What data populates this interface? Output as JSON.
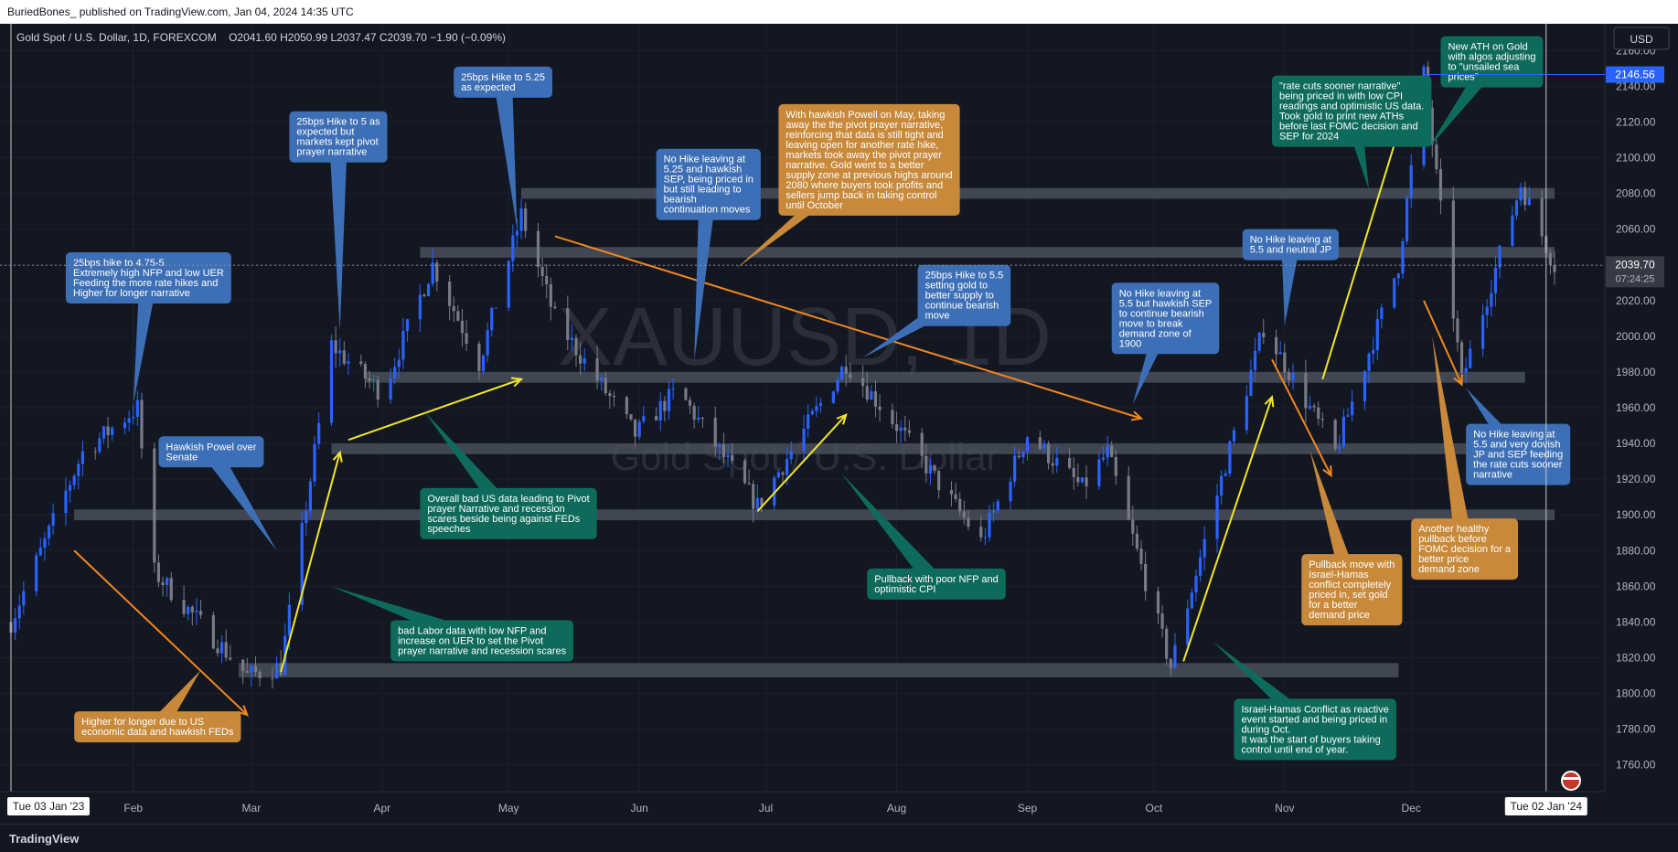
{
  "header": {
    "publisher_line": "BuriedBones_ published on TradingView.com, Jan 04, 2024 14:35 UTC",
    "symbol_line": "Gold Spot / U.S. Dollar, 1D, FOREXCOM",
    "ohlc": "O2041.60  H2050.99  L2037.47  C2039.70  −1.90 (−0.09%)",
    "currency_button": "USD"
  },
  "watermark": {
    "symbol": "XAUUSD, 1D",
    "name": "Gold Spot / U.S. Dollar"
  },
  "footer": {
    "brand": "TradingView",
    "logo_icon": "tradingview-logo-icon"
  },
  "colors": {
    "background": "#131722",
    "up": "#2962ff",
    "down": "#787b86",
    "note_blue": "#3d6fb6",
    "note_green": "#0e6b5c",
    "note_orange": "#c8893a",
    "zone": "#4a4f5c",
    "arrow_yellow": "#f2e529",
    "arrow_orange": "#f2871f",
    "last_price_bg": "#363a45",
    "ath_price_bg": "#2962ff"
  },
  "chart_data": {
    "type": "candlestick",
    "x_range": [
      "2023-01-03",
      "2024-01-04"
    ],
    "ylim": [
      1745,
      2175
    ],
    "y_ticks": [
      1760,
      1780,
      1800,
      1820,
      1840,
      1860,
      1880,
      1900,
      1920,
      1940,
      1960,
      1980,
      2000,
      2020,
      2040,
      2060,
      2080,
      2100,
      2120,
      2140,
      2160
    ],
    "month_ticks": [
      {
        "label": "Feb",
        "date": "2023-02-01"
      },
      {
        "label": "Mar",
        "date": "2023-03-01"
      },
      {
        "label": "Apr",
        "date": "2023-04-01"
      },
      {
        "label": "May",
        "date": "2023-05-01"
      },
      {
        "label": "Jun",
        "date": "2023-06-01"
      },
      {
        "label": "Jul",
        "date": "2023-07-01"
      },
      {
        "label": "Aug",
        "date": "2023-08-01"
      },
      {
        "label": "Sep",
        "date": "2023-09-01"
      },
      {
        "label": "Oct",
        "date": "2023-10-01"
      },
      {
        "label": "Nov",
        "date": "2023-11-01"
      },
      {
        "label": "Dec",
        "date": "2023-12-01"
      }
    ],
    "cursor_start": {
      "label": "Tue 03 Jan '23",
      "date": "2023-01-03"
    },
    "cursor_end": {
      "label": "Tue 02 Jan '24",
      "date": "2024-01-02"
    },
    "last_price": {
      "value": 2039.7,
      "label": "2039.70",
      "countdown": "07:24:25"
    },
    "ath_price": {
      "value": 2146.56,
      "label": "2146.56"
    },
    "price_path": [
      [
        "2023-01-03",
        1840
      ],
      [
        "2023-01-20",
        1935
      ],
      [
        "2023-02-02",
        1960
      ],
      [
        "2023-02-06",
        1868
      ],
      [
        "2023-02-28",
        1810
      ],
      [
        "2023-03-08",
        1815
      ],
      [
        "2023-03-20",
        1995
      ],
      [
        "2023-04-01",
        1968
      ],
      [
        "2023-04-13",
        2040
      ],
      [
        "2023-04-24",
        1985
      ],
      [
        "2023-05-04",
        2068
      ],
      [
        "2023-05-12",
        2010
      ],
      [
        "2023-05-31",
        1945
      ],
      [
        "2023-06-10",
        1970
      ],
      [
        "2023-06-29",
        1905
      ],
      [
        "2023-07-20",
        1985
      ],
      [
        "2023-08-01",
        1950
      ],
      [
        "2023-08-21",
        1885
      ],
      [
        "2023-09-01",
        1945
      ],
      [
        "2023-09-14",
        1915
      ],
      [
        "2023-09-20",
        1935
      ],
      [
        "2023-10-05",
        1815
      ],
      [
        "2023-10-17",
        1920
      ],
      [
        "2023-10-27",
        2005
      ],
      [
        "2023-11-13",
        1935
      ],
      [
        "2023-11-28",
        2040
      ],
      [
        "2023-12-04",
        2146.56
      ],
      [
        "2023-12-13",
        1975
      ],
      [
        "2023-12-27",
        2085
      ],
      [
        "2024-01-04",
        2039.7
      ]
    ],
    "zones": [
      {
        "from": "2023-05-04",
        "to": "2024-01-04",
        "low": 2077,
        "high": 2083
      },
      {
        "from": "2023-04-10",
        "to": "2024-01-04",
        "low": 2044,
        "high": 2050
      },
      {
        "from": "2023-03-28",
        "to": "2023-12-28",
        "low": 1974,
        "high": 1980
      },
      {
        "from": "2023-03-20",
        "to": "2024-01-04",
        "low": 1934,
        "high": 1940
      },
      {
        "from": "2023-01-18",
        "to": "2024-01-04",
        "low": 1897,
        "high": 1903
      },
      {
        "from": "2023-02-26",
        "to": "2023-11-28",
        "low": 1809,
        "high": 1817
      }
    ],
    "annotations": [
      {
        "id": "n1",
        "style": "blue",
        "lines": [
          "25bps hike to 4.75-5",
          "Extremely high NFP and low UER",
          "Feeding the more rate hikes and",
          "Higher for longer narrative"
        ],
        "box": {
          "date": "2023-01-16",
          "price": 2047
        },
        "pointer": {
          "date": "2023-02-01",
          "price": 1962
        }
      },
      {
        "id": "n2",
        "style": "blue",
        "lines": [
          "Hawkish Powel over",
          "Senate"
        ],
        "box": {
          "date": "2023-02-07",
          "price": 1944
        },
        "pointer": {
          "date": "2023-03-07",
          "price": 1880
        }
      },
      {
        "id": "n3",
        "style": "blue",
        "lines": [
          "25bps Hike to 5 as",
          "expected but",
          "markets kept pivot",
          "prayer narrative"
        ],
        "box": {
          "date": "2023-03-10",
          "price": 2126
        },
        "pointer": {
          "date": "2023-03-22",
          "price": 2003
        }
      },
      {
        "id": "n4",
        "style": "blue",
        "lines": [
          "25bps Hike to 5.25",
          "as expected"
        ],
        "box": {
          "date": "2023-04-18",
          "price": 2151
        },
        "pointer": {
          "date": "2023-05-03",
          "price": 2060
        }
      },
      {
        "id": "n5",
        "style": "blue",
        "lines": [
          "No Hike leaving at",
          "5.25 and hawkish",
          "SEP, being priced in",
          "but still leading to",
          "bearish",
          "continuation moves"
        ],
        "box": {
          "date": "2023-06-05",
          "price": 2105
        },
        "pointer": {
          "date": "2023-06-14",
          "price": 1986
        }
      },
      {
        "id": "n6",
        "style": "orange",
        "lines": [
          "With hawkish Powell on May, taking",
          "away the the pivot prayer narrative,",
          "reinforcing that data is still tight and",
          "leaving open for another rate hike,",
          "markets took away the pivot prayer",
          "narrative. Gold went to a better",
          "supply zone at previous highs around",
          "2080 where buyers took profits and",
          "sellers jump back in taking control",
          "until October"
        ],
        "box": {
          "date": "2023-07-04",
          "price": 2130
        },
        "pointer": {
          "date": "2023-06-24",
          "price": 2038
        }
      },
      {
        "id": "n7",
        "style": "blue",
        "lines": [
          "25bps Hike to 5.5",
          "setting gold to",
          "better supply to",
          "continue bearish",
          "move"
        ],
        "box": {
          "date": "2023-08-06",
          "price": 2040
        },
        "pointer": {
          "date": "2023-07-24",
          "price": 1988
        }
      },
      {
        "id": "n8",
        "style": "blue",
        "lines": [
          "No Hike leaving at",
          "5.5 but hawkish SEP",
          "to continue bearish",
          "move to break",
          "demand zone of",
          "1900"
        ],
        "box": {
          "date": "2023-09-21",
          "price": 2030
        },
        "pointer": {
          "date": "2023-09-26",
          "price": 1962
        }
      },
      {
        "id": "n9",
        "style": "blue",
        "lines": [
          "No Hike leaving at",
          "5.5 and neutral JP"
        ],
        "box": {
          "date": "2023-10-22",
          "price": 2060
        },
        "pointer": {
          "date": "2023-11-01",
          "price": 2006
        }
      },
      {
        "id": "n10",
        "style": "green",
        "lines": [
          "\"rate cuts sooner narrative\"",
          "being priced in with low CPI",
          "readings and optimistic US data.",
          "Took gold to print new ATHs",
          "before last FOMC decision and",
          "SEP for 2024"
        ],
        "box": {
          "date": "2023-10-29",
          "price": 2146
        },
        "pointer": {
          "date": "2023-11-21",
          "price": 2082
        }
      },
      {
        "id": "n11",
        "style": "green",
        "lines": [
          "New ATH on Gold",
          "with algos adjusting",
          "to \"unsailed sea",
          "prices\""
        ],
        "box": {
          "date": "2023-12-08",
          "price": 2168
        },
        "pointer": {
          "date": "2023-12-05",
          "price": 2105
        }
      },
      {
        "id": "n12",
        "style": "green",
        "lines": [
          "Overall bad US data leading to Pivot",
          "prayer Narrative and recession",
          "scares beside being against FEDs",
          "speeches"
        ],
        "box": {
          "date": "2023-04-10",
          "price": 1915
        },
        "pointer": {
          "date": "2023-04-11",
          "price": 1958
        }
      },
      {
        "id": "n13",
        "style": "green",
        "lines": [
          "bad Labor data with low NFP and",
          "increase on UER to set the Pivot",
          "prayer narrative and recession scares"
        ],
        "box": {
          "date": "2023-04-03",
          "price": 1841
        },
        "pointer": {
          "date": "2023-03-20",
          "price": 1860
        }
      },
      {
        "id": "n14",
        "style": "green",
        "lines": [
          "Pullback with poor NFP and",
          "optimistic CPI"
        ],
        "box": {
          "date": "2023-07-25",
          "price": 1870
        },
        "pointer": {
          "date": "2023-07-19",
          "price": 1923
        }
      },
      {
        "id": "n15",
        "style": "green",
        "lines": [
          "Israel-Hamas Conflict as reactive",
          "event started and being priced in",
          "during Oct.",
          "It was the start of buyers taking",
          "control until end of year."
        ],
        "box": {
          "date": "2023-10-20",
          "price": 1797
        },
        "pointer": {
          "date": "2023-10-15",
          "price": 1829
        }
      },
      {
        "id": "n16",
        "style": "orange",
        "lines": [
          "Pullback move with",
          "Israel-Hamas",
          "conflict completely",
          "priced in, set gold",
          "for a better",
          "demand price"
        ],
        "box": {
          "date": "2023-11-05",
          "price": 1878
        },
        "pointer": {
          "date": "2023-11-07",
          "price": 1936
        }
      },
      {
        "id": "n17",
        "style": "orange",
        "lines": [
          "Another healthy",
          "pullback before",
          "FOMC decision for a",
          "better price",
          "demand zone"
        ],
        "box": {
          "date": "2023-12-01",
          "price": 1898
        },
        "pointer": {
          "date": "2023-12-06",
          "price": 2000
        }
      },
      {
        "id": "n18",
        "style": "blue",
        "lines": [
          "No Hike leaving at",
          "5.5 and very dovish",
          "JP and SEP feeding",
          "the rate cuts sooner",
          "narrative"
        ],
        "box": {
          "date": "2023-12-14",
          "price": 1951
        },
        "pointer": {
          "date": "2023-12-14",
          "price": 1971
        }
      },
      {
        "id": "n19",
        "style": "orange",
        "lines": [
          "Higher for longer due to US",
          "economic data and hawkish FEDs"
        ],
        "box": {
          "date": "2023-01-18",
          "price": 1790
        },
        "pointer": {
          "date": "2023-02-17",
          "price": 1813
        }
      }
    ],
    "arrows": [
      {
        "color": "yellow",
        "from": {
          "date": "2023-03-08",
          "price": 1812
        },
        "to": {
          "date": "2023-03-22",
          "price": 1935
        }
      },
      {
        "color": "yellow",
        "from": {
          "date": "2023-03-24",
          "price": 1942
        },
        "to": {
          "date": "2023-05-04",
          "price": 1976
        }
      },
      {
        "color": "yellow",
        "from": {
          "date": "2023-06-29",
          "price": 1902
        },
        "to": {
          "date": "2023-07-20",
          "price": 1956
        }
      },
      {
        "color": "yellow",
        "from": {
          "date": "2023-10-08",
          "price": 1818
        },
        "to": {
          "date": "2023-10-29",
          "price": 1966
        }
      },
      {
        "color": "yellow",
        "from": {
          "date": "2023-11-10",
          "price": 1976
        },
        "to": {
          "date": "2023-11-28",
          "price": 2115
        }
      },
      {
        "color": "orange",
        "from": {
          "date": "2023-01-18",
          "price": 1880
        },
        "to": {
          "date": "2023-02-28",
          "price": 1788
        }
      },
      {
        "color": "orange",
        "from": {
          "date": "2023-05-12",
          "price": 2056
        },
        "to": {
          "date": "2023-09-28",
          "price": 1954
        }
      },
      {
        "color": "orange",
        "from": {
          "date": "2023-10-29",
          "price": 1987
        },
        "to": {
          "date": "2023-11-12",
          "price": 1922
        }
      },
      {
        "color": "orange",
        "from": {
          "date": "2023-12-04",
          "price": 2020
        },
        "to": {
          "date": "2023-12-13",
          "price": 1973
        }
      }
    ]
  }
}
